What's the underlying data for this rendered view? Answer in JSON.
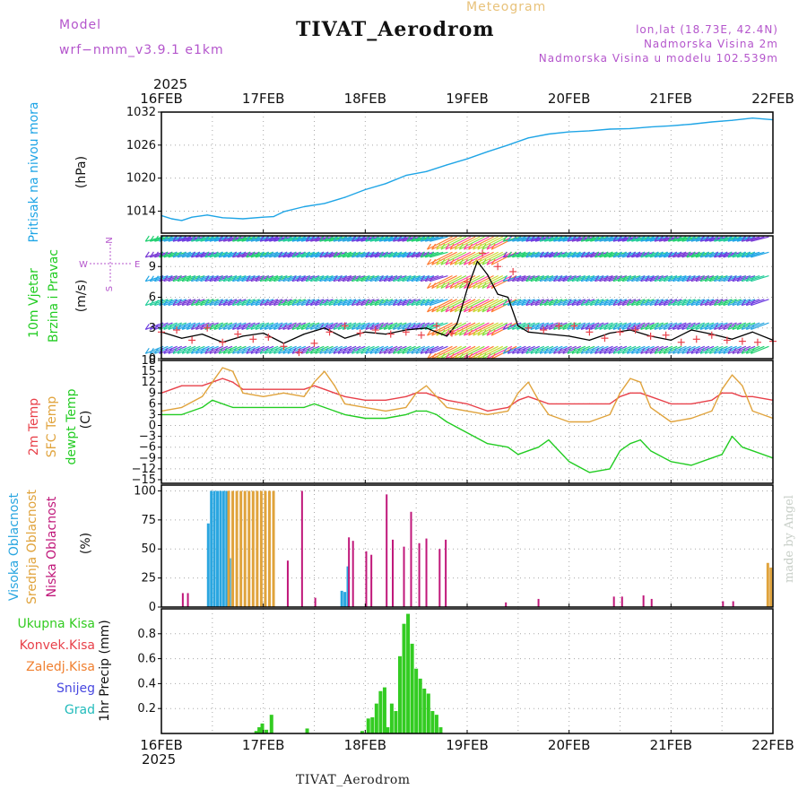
{
  "header": {
    "model_label": "Model",
    "model_name": "wrf−nmm_v3.9.1  e1km",
    "title": "TIVAT_Aerodrom",
    "subtitle": "Meteogram",
    "location_line": "lon,lat (18.73E, 42.4N)",
    "elevation_line": "Nadmorska Visina 2m",
    "model_elevation_line": "Nadmorska Visina u modelu 102.539m",
    "year_top": "2025",
    "year_bottom": "2025",
    "bottom_title": "TIVAT_Aerodrom",
    "credit": "made by Angel"
  },
  "colors": {
    "pressure": "#1fa5e6",
    "temp2m": "#e8414a",
    "sfc_temp": "#e0a33c",
    "dewpoint": "#22cc22",
    "cloud_high": "#2aa6e0",
    "cloud_mid": "#e0a33c",
    "cloud_low": "#c0177a",
    "precip_total": "#33cc22",
    "precip_conv": "#e8414a",
    "precip_frz": "#f08030",
    "snow": "#4848e0",
    "hail": "#22bbbb",
    "gust": "#e8414a",
    "wind_speed": "#000000",
    "axis_label_purple": "#b455cc"
  },
  "chart_data": [
    {
      "id": "pressure",
      "type": "line",
      "panel_labels": [
        "Pritisak na nivou mora",
        "(hPa)"
      ],
      "x_ticks": [
        "16FEB",
        "17FEB",
        "18FEB",
        "19FEB",
        "20FEB",
        "21FEB",
        "22FEB"
      ],
      "x_unit": "days since 16FEB 00Z",
      "ylim": [
        1010,
        1032
      ],
      "yticks": [
        1014,
        1020,
        1026,
        1032
      ],
      "grid": true,
      "series": [
        {
          "name": "Pritisak na nivou mora",
          "color_key": "pressure",
          "x": [
            0,
            0.1,
            0.2,
            0.3,
            0.45,
            0.6,
            0.8,
            1.0,
            1.1,
            1.2,
            1.4,
            1.6,
            1.8,
            2.0,
            2.2,
            2.4,
            2.6,
            2.8,
            3.0,
            3.2,
            3.4,
            3.6,
            3.8,
            4.0,
            4.2,
            4.4,
            4.6,
            4.8,
            5.0,
            5.2,
            5.4,
            5.6,
            5.8,
            6.0
          ],
          "values": [
            1013.2,
            1012.6,
            1012.3,
            1012.9,
            1013.3,
            1012.8,
            1012.6,
            1012.9,
            1013.0,
            1013.9,
            1014.8,
            1015.4,
            1016.5,
            1017.9,
            1019.0,
            1020.5,
            1021.2,
            1022.4,
            1023.5,
            1024.8,
            1026.0,
            1027.3,
            1028.0,
            1028.4,
            1028.6,
            1028.9,
            1029.0,
            1029.3,
            1029.5,
            1029.8,
            1030.2,
            1030.5,
            1030.9,
            1030.6
          ]
        }
      ]
    },
    {
      "id": "wind",
      "type": "line",
      "panel_labels": [
        "10m Vjetar",
        "Brzina i Pravac",
        "(m/s)"
      ],
      "compass_labels": [
        "W",
        "E",
        "N",
        "S"
      ],
      "ylim": [
        0,
        12
      ],
      "yticks": [
        0,
        3,
        6,
        9
      ],
      "grid": true,
      "barb_rows": [
        1.2,
        3.5,
        5.8,
        8.1,
        10.4,
        11.9
      ],
      "series": [
        {
          "name": "speed",
          "color_key": "wind_speed",
          "x": [
            0,
            0.2,
            0.4,
            0.6,
            0.8,
            1.0,
            1.2,
            1.4,
            1.6,
            1.8,
            2.0,
            2.2,
            2.4,
            2.6,
            2.8,
            2.9,
            3.0,
            3.1,
            3.2,
            3.3,
            3.4,
            3.5,
            3.6,
            3.7,
            3.8,
            4.0,
            4.2,
            4.4,
            4.6,
            4.8,
            5.0,
            5.2,
            5.4,
            5.6,
            5.8,
            6.0
          ],
          "values": [
            2.6,
            2.0,
            2.4,
            1.6,
            2.2,
            2.5,
            1.5,
            2.4,
            3.0,
            2.0,
            2.6,
            2.4,
            2.8,
            3.0,
            2.2,
            3.4,
            6.8,
            9.5,
            8.2,
            6.3,
            6.0,
            3.2,
            2.6,
            2.5,
            2.4,
            2.2,
            1.8,
            2.5,
            2.8,
            2.2,
            1.8,
            2.8,
            2.4,
            1.9,
            2.6,
            1.8
          ]
        },
        {
          "name": "gust",
          "color_key": "gust",
          "marker": "+",
          "x": [
            0,
            0.15,
            0.3,
            0.45,
            0.6,
            0.75,
            0.9,
            1.05,
            1.2,
            1.35,
            1.5,
            1.65,
            1.8,
            1.95,
            2.1,
            2.25,
            2.4,
            2.55,
            2.7,
            2.85,
            3.0,
            3.15,
            3.3,
            3.45,
            3.6,
            3.75,
            3.9,
            4.05,
            4.2,
            4.35,
            4.5,
            4.65,
            4.8,
            4.95,
            5.1,
            5.25,
            5.4,
            5.55,
            5.7,
            5.85,
            6.0
          ],
          "values": [
            2.6,
            2.8,
            1.8,
            3.0,
            1.6,
            2.4,
            1.9,
            2.1,
            1.2,
            0.6,
            1.5,
            2.6,
            3.2,
            2.5,
            2.8,
            2.4,
            2.6,
            2.3,
            3.2,
            2.5,
            7.5,
            10.3,
            9.0,
            8.5,
            3.0,
            2.8,
            3.2,
            3.2,
            2.6,
            2.0,
            2.6,
            2.8,
            2.2,
            2.3,
            1.6,
            1.9,
            2.3,
            1.8,
            1.7,
            1.6,
            1.7
          ]
        }
      ]
    },
    {
      "id": "temperature",
      "type": "line",
      "panel_labels": [
        "2m Temp",
        "SFC Temp",
        "dewpt Temp",
        "(C)"
      ],
      "ylim": [
        -16,
        18
      ],
      "yticks": [
        -15,
        -12,
        -9,
        -6,
        -3,
        0,
        3,
        6,
        9,
        12,
        15,
        18
      ],
      "grid": true,
      "x": [
        0,
        0.2,
        0.4,
        0.5,
        0.6,
        0.7,
        0.8,
        1.0,
        1.2,
        1.4,
        1.5,
        1.6,
        1.7,
        1.8,
        2.0,
        2.2,
        2.4,
        2.5,
        2.6,
        2.7,
        2.8,
        3.0,
        3.2,
        3.4,
        3.5,
        3.6,
        3.7,
        3.8,
        4.0,
        4.2,
        4.4,
        4.5,
        4.6,
        4.7,
        4.8,
        5.0,
        5.2,
        5.4,
        5.5,
        5.6,
        5.7,
        5.8,
        6.0
      ],
      "series": [
        {
          "name": "2m Temp",
          "color_key": "temp2m",
          "values": [
            9,
            11,
            11,
            12,
            13,
            12,
            10,
            10,
            10,
            10,
            11,
            10,
            9,
            8,
            7,
            7,
            8,
            9,
            9,
            8,
            7,
            6,
            4,
            5,
            7,
            8,
            7,
            6,
            6,
            6,
            6,
            8,
            9,
            9,
            8,
            6,
            6,
            7,
            9,
            9,
            8,
            8,
            7
          ]
        },
        {
          "name": "SFC Temp",
          "color_key": "sfc_temp",
          "values": [
            4,
            5,
            8,
            12,
            16,
            15,
            9,
            8,
            9,
            8,
            12,
            15,
            11,
            6,
            5,
            4,
            5,
            9,
            11,
            8,
            5,
            4,
            3,
            4,
            9,
            12,
            7,
            3,
            1,
            1,
            3,
            9,
            13,
            12,
            5,
            1,
            2,
            4,
            10,
            14,
            11,
            4,
            2
          ]
        },
        {
          "name": "dewpt Temp",
          "color_key": "dewpoint",
          "values": [
            3,
            3,
            5,
            7,
            6,
            5,
            5,
            5,
            5,
            5,
            6,
            5,
            4,
            3,
            2,
            2,
            3,
            4,
            4,
            3,
            1,
            -2,
            -5,
            -6,
            -8,
            -7,
            -6,
            -4,
            -10,
            -13,
            -12,
            -7,
            -5,
            -4,
            -7,
            -10,
            -11,
            -9,
            -8,
            -3,
            -6,
            -7,
            -9
          ]
        }
      ]
    },
    {
      "id": "clouds",
      "type": "bar",
      "panel_labels": [
        "Visoka Oblacnost",
        "Srednja Oblacnost",
        "Niska Oblacnost",
        "(%)"
      ],
      "ylim": [
        0,
        105
      ],
      "yticks": [
        0,
        25,
        50,
        75,
        100
      ],
      "grid": true,
      "series": [
        {
          "name": "Visoka Oblacnost",
          "color_key": "cloud_high",
          "x": [
            0.46,
            0.49,
            0.52,
            0.55,
            0.58,
            0.61,
            0.64,
            0.67,
            1.77,
            1.8,
            1.83
          ],
          "values": [
            72,
            100,
            100,
            100,
            100,
            100,
            100,
            42,
            14,
            13,
            35
          ]
        },
        {
          "name": "Srednja Oblacnost",
          "color_key": "cloud_mid",
          "x": [
            0.66,
            0.7,
            0.74,
            0.78,
            0.82,
            0.86,
            0.9,
            0.94,
            0.98,
            1.02,
            1.06,
            1.1,
            5.95,
            5.98
          ],
          "values": [
            100,
            100,
            100,
            100,
            100,
            100,
            100,
            100,
            100,
            100,
            100,
            100,
            38,
            34
          ]
        },
        {
          "name": "Niska Oblacnost",
          "color_key": "cloud_low",
          "x": [
            0.21,
            0.26,
            1.24,
            1.38,
            1.51,
            1.84,
            1.88,
            2.01,
            2.06,
            2.21,
            2.27,
            2.38,
            2.45,
            2.53,
            2.6,
            2.73,
            2.79,
            3.38,
            3.7,
            4.44,
            4.52,
            4.73,
            4.81,
            5.51,
            5.61
          ],
          "values": [
            12,
            12,
            40,
            100,
            8,
            60,
            57,
            48,
            45,
            97,
            58,
            52,
            82,
            55,
            59,
            50,
            58,
            4,
            7,
            9,
            9,
            10,
            7,
            5,
            5
          ]
        }
      ]
    },
    {
      "id": "precip",
      "type": "bar",
      "panel_labels": [
        "1hr Precip (mm)"
      ],
      "legend": [
        "Ukupna Kisa",
        "Konvek.Kisa",
        "Zaledj.Kisa",
        "Snijeg",
        "Grad"
      ],
      "x_ticks": [
        "16FEB",
        "17FEB",
        "18FEB",
        "19FEB",
        "20FEB",
        "21FEB",
        "22FEB"
      ],
      "ylim": [
        0,
        1.0
      ],
      "yticks": [
        0.2,
        0.4,
        0.6,
        0.8
      ],
      "grid": true,
      "series": [
        {
          "name": "Ukupna Kisa",
          "color_key": "precip_total",
          "x": [
            0.93,
            0.96,
            0.99,
            1.03,
            1.08,
            1.43,
            1.97,
            2.03,
            2.07,
            2.11,
            2.15,
            2.19,
            2.22,
            2.26,
            2.3,
            2.34,
            2.38,
            2.42,
            2.46,
            2.5,
            2.54,
            2.58,
            2.62,
            2.66,
            2.7,
            2.74
          ],
          "values": [
            0.02,
            0.05,
            0.08,
            0.03,
            0.15,
            0.04,
            0.02,
            0.12,
            0.13,
            0.24,
            0.34,
            0.37,
            0.05,
            0.24,
            0.18,
            0.62,
            0.88,
            0.96,
            0.72,
            0.52,
            0.44,
            0.36,
            0.32,
            0.18,
            0.15,
            0.05
          ]
        }
      ]
    }
  ]
}
